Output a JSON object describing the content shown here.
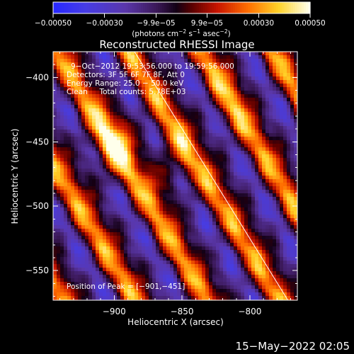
{
  "chart_data": {
    "type": "heatmap",
    "title": "Reconstructed RHESSI Image",
    "xlabel": "Heliocentric X (arcsec)",
    "ylabel": "Heliocentric Y (arcsec)",
    "xlim": [
      -945,
      -765
    ],
    "ylim": [
      -573,
      -380
    ],
    "xticks": [
      -900,
      -850,
      -800
    ],
    "xtick_labels": [
      "−900",
      "−850",
      "−800"
    ],
    "yticks": [
      -400,
      -450,
      -500,
      -550
    ],
    "ytick_labels": [
      "−400",
      "−450",
      "−500",
      "−550"
    ],
    "colorbar": {
      "range": [
        -0.0005,
        0.0005
      ],
      "tick_values": [
        -0.0005,
        -0.0003,
        -9.9e-05,
        9.9e-05,
        0.0003,
        0.0005
      ],
      "tick_labels": [
        "−0.00050",
        "−0.00030",
        "−9.9e−05",
        "9.9e−05",
        "0.00030",
        "0.00050"
      ],
      "units_parts": [
        "(photons cm",
        "−2",
        " s",
        "−1",
        " asec",
        "−2",
        ")"
      ]
    },
    "annotations": [
      "9−Oct−2012 19:53:56.000 to 19:59:56.000",
      "Detectors: 3F 5F 6F 7F 8F, Att 0",
      "Energy Range: 25.0 − 50.0 keV",
      "Clean     Total counts: 5.78E+03",
      "Position of Peak = [−901,−451]"
    ],
    "peak_position": [
      -901,
      -451
    ],
    "limb_line": [
      [
        -885,
        -380
      ],
      [
        -772,
        -573
      ]
    ],
    "stripes_description_values": {
      "peak_value": 0.0005,
      "min_value": -0.00045,
      "stripe_angle_deg": -60
    }
  },
  "footer": {
    "timestamp": "15−May−2022 02:05"
  },
  "colors": {
    "background": "#000000",
    "foreground": "#ffffff"
  }
}
